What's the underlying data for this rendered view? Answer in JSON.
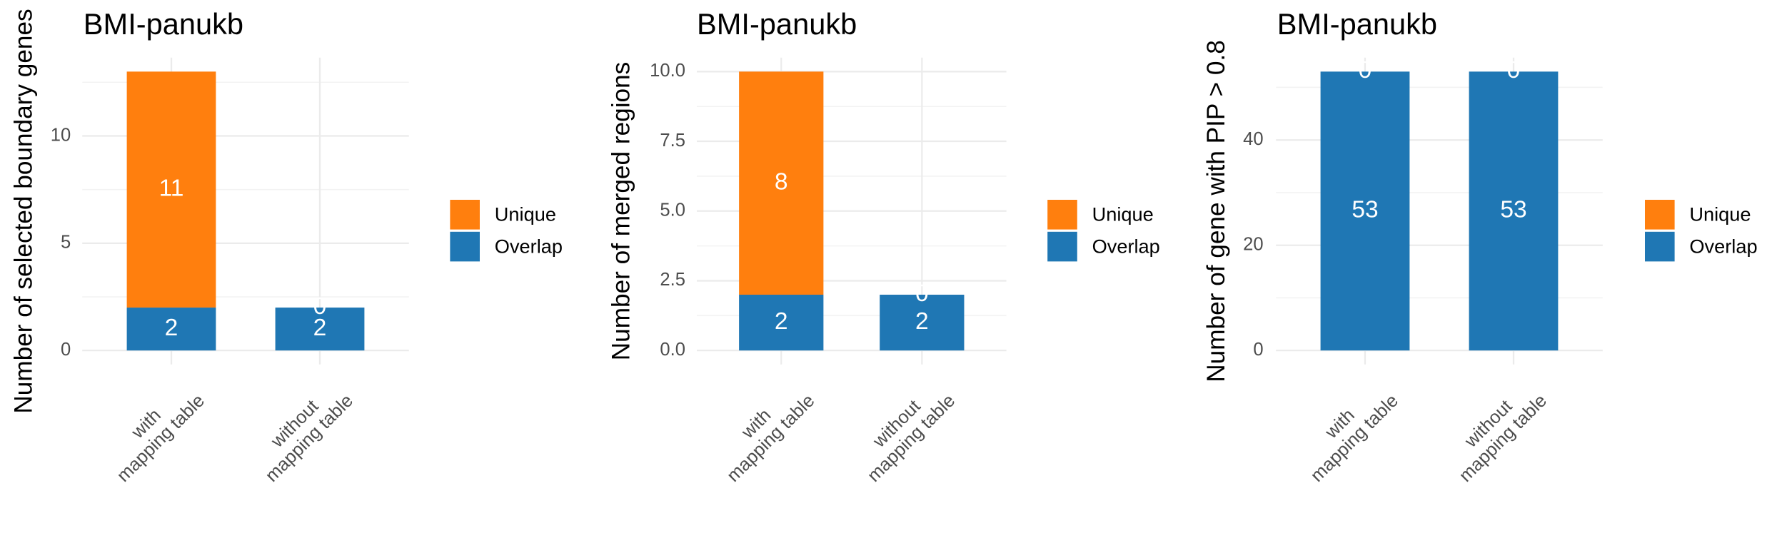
{
  "chart_data": [
    {
      "type": "stacked_bar",
      "title": "BMI-panukb",
      "ylabel": "Number of selected boundary genes",
      "categories": [
        "with\nmapping table",
        "without\nmapping table"
      ],
      "series": [
        {
          "name": "Overlap",
          "color": "#1f77b4",
          "values": [
            2,
            2
          ]
        },
        {
          "name": "Unique",
          "color": "#ff7f0e",
          "values": [
            11,
            0
          ]
        }
      ],
      "ylim": [
        -0.65,
        13.65
      ],
      "yticks": [
        0,
        5,
        10
      ],
      "grid": true,
      "minor_grid": true,
      "legend": "right"
    },
    {
      "type": "stacked_bar",
      "title": "BMI-panukb",
      "ylabel": "Number of merged regions",
      "categories": [
        "with\nmapping table",
        "without\nmapping table"
      ],
      "series": [
        {
          "name": "Overlap",
          "color": "#1f77b4",
          "values": [
            2,
            2
          ]
        },
        {
          "name": "Unique",
          "color": "#ff7f0e",
          "values": [
            8,
            0
          ]
        }
      ],
      "ylim": [
        -0.5,
        10.5
      ],
      "yticks": [
        {
          "value": 0,
          "label": "0.0"
        },
        2.5,
        {
          "value": 5,
          "label": "5.0"
        },
        7.5,
        {
          "value": 10,
          "label": "10.0"
        }
      ],
      "grid": true,
      "minor_grid": true,
      "legend": "right"
    },
    {
      "type": "stacked_bar",
      "title": "BMI-panukb",
      "ylabel": "Number of gene with PIP > 0.8",
      "categories": [
        "with\nmapping table",
        "without\nmapping table"
      ],
      "series": [
        {
          "name": "Overlap",
          "color": "#1f77b4",
          "values": [
            53,
            53
          ]
        },
        {
          "name": "Unique",
          "color": "#ff7f0e",
          "values": [
            0,
            0
          ]
        }
      ],
      "ylim": [
        -2.65,
        55.65
      ],
      "yticks": [
        0,
        20,
        40
      ],
      "grid": true,
      "minor_grid": true,
      "legend": "right"
    }
  ]
}
